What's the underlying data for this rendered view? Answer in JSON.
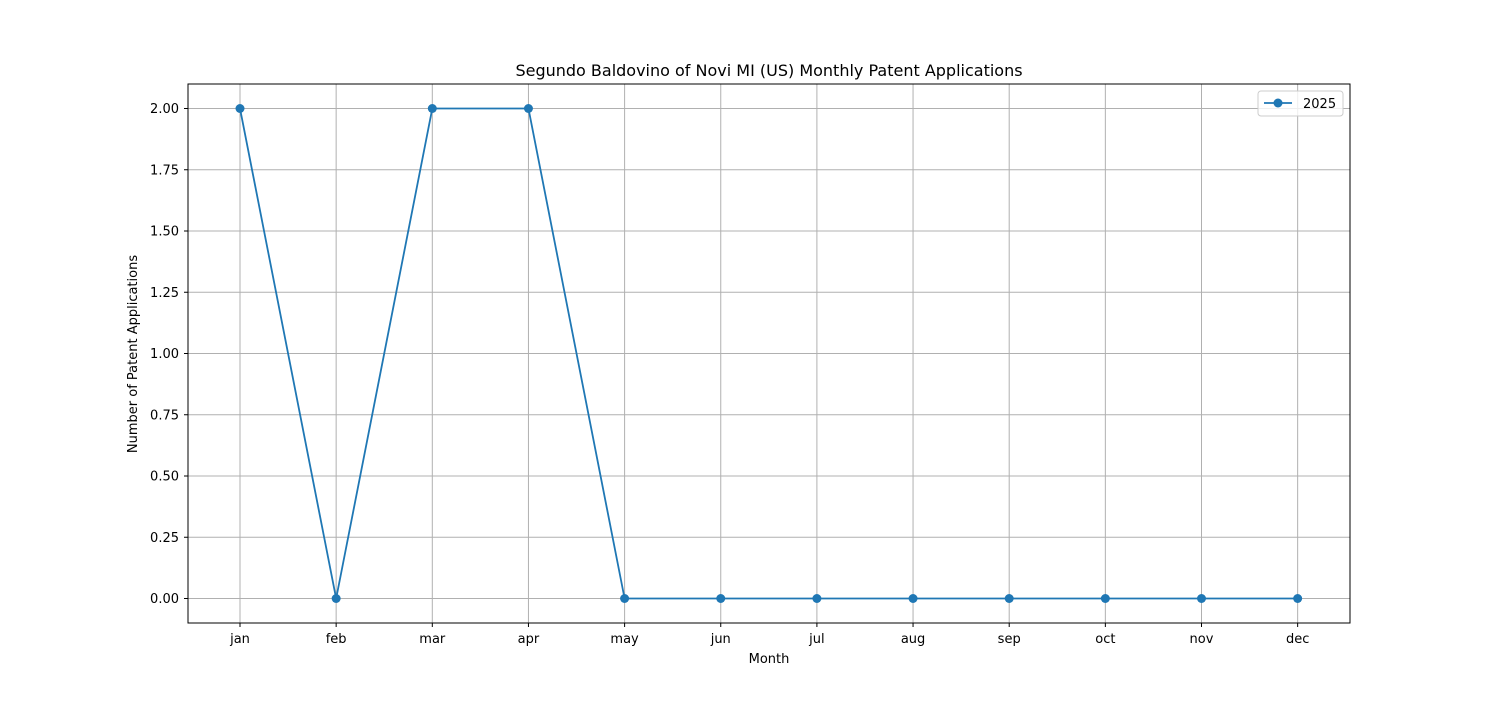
{
  "chart_data": {
    "type": "line",
    "title": "Segundo Baldovino of Novi MI (US) Monthly Patent Applications",
    "xlabel": "Month",
    "ylabel": "Number of Patent Applications",
    "categories": [
      "jan",
      "feb",
      "mar",
      "apr",
      "may",
      "jun",
      "jul",
      "aug",
      "sep",
      "oct",
      "nov",
      "dec"
    ],
    "series": [
      {
        "name": "2025",
        "values": [
          2,
          0,
          2,
          2,
          0,
          0,
          0,
          0,
          0,
          0,
          0,
          0
        ],
        "color": "#1f77b4",
        "marker": "circle"
      }
    ],
    "ylim": [
      -0.1,
      2.1
    ],
    "yticks": [
      "0.00",
      "0.25",
      "0.50",
      "0.75",
      "1.00",
      "1.25",
      "1.50",
      "1.75",
      "2.00"
    ],
    "grid": true,
    "legend_position": "top-right"
  }
}
